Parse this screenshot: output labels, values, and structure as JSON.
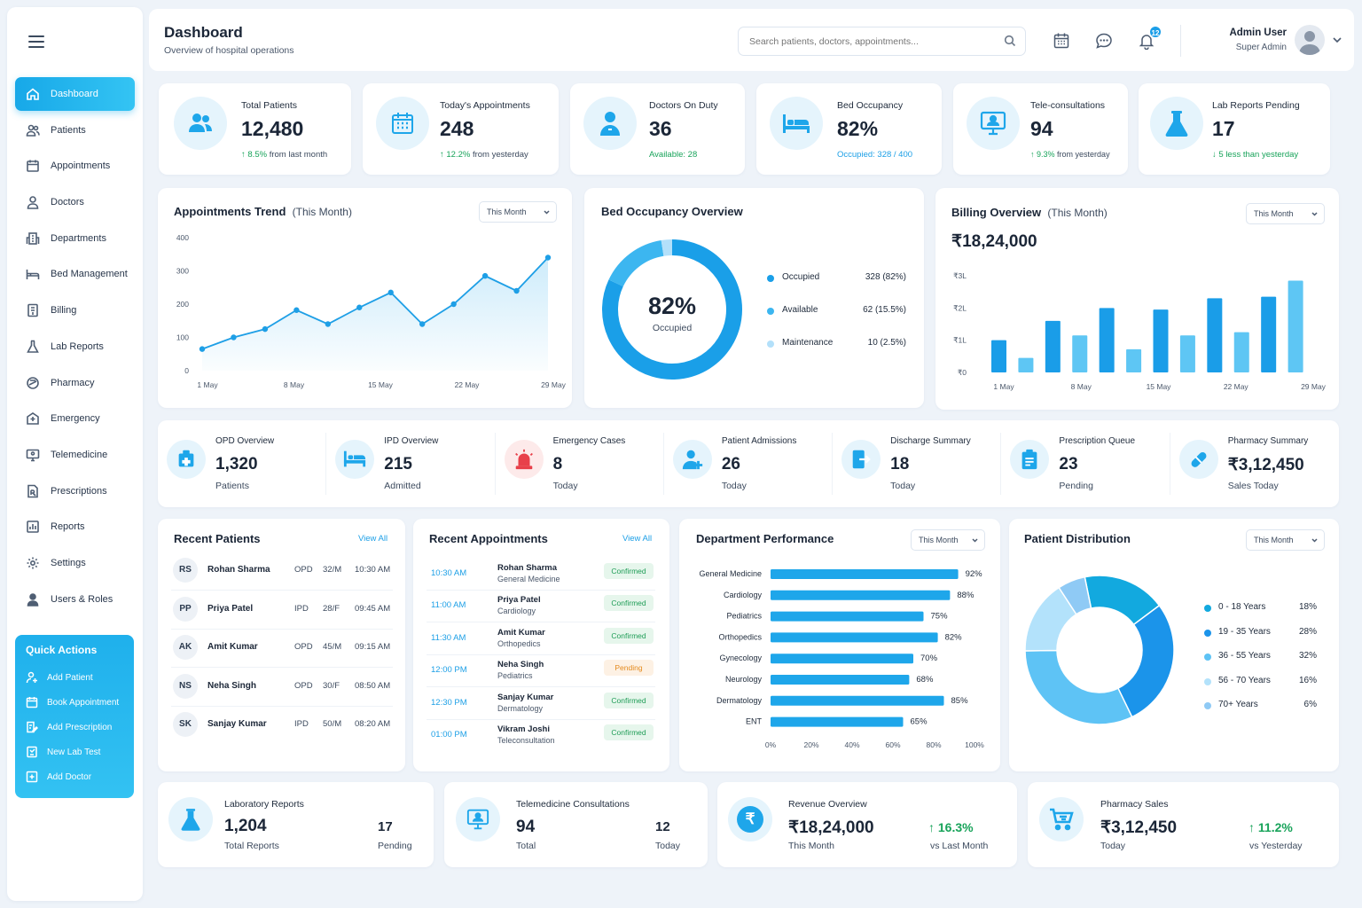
{
  "sidebar": {
    "items": [
      {
        "label": "Dashboard",
        "icon": "home-icon"
      },
      {
        "label": "Patients",
        "icon": "users-icon"
      },
      {
        "label": "Appointments",
        "icon": "calendar-icon"
      },
      {
        "label": "Doctors",
        "icon": "doctor-icon"
      },
      {
        "label": "Departments",
        "icon": "building-icon"
      },
      {
        "label": "Bed Management",
        "icon": "bed-icon"
      },
      {
        "label": "Billing",
        "icon": "billing-icon"
      },
      {
        "label": "Lab Reports",
        "icon": "flask-icon"
      },
      {
        "label": "Pharmacy",
        "icon": "pill-icon"
      },
      {
        "label": "Emergency",
        "icon": "hospital-icon"
      },
      {
        "label": "Telemedicine",
        "icon": "monitor-icon"
      },
      {
        "label": "Prescriptions",
        "icon": "prescription-icon"
      },
      {
        "label": "Reports",
        "icon": "bar-chart-icon"
      },
      {
        "label": "Settings",
        "icon": "gear-icon"
      },
      {
        "label": "Users & Roles",
        "icon": "user-roles-icon"
      }
    ],
    "quick_actions": {
      "title": "Quick Actions",
      "items": [
        "Add Patient",
        "Book Appointment",
        "Add Prescription",
        "New Lab Test",
        "Add Doctor"
      ]
    }
  },
  "header": {
    "title": "Dashboard",
    "subtitle": "Overview of hospital operations",
    "search_placeholder": "Search patients, doctors, appointments...",
    "notification_count": "12",
    "user_name": "Admin User",
    "user_role": "Super Admin"
  },
  "stats": [
    {
      "label": "Total Patients",
      "value": "12,480",
      "delta": "8.5%",
      "delta_text": "from last month"
    },
    {
      "label": "Today's Appointments",
      "value": "248",
      "delta": "12.2%",
      "delta_text": "from yesterday"
    },
    {
      "label": "Doctors On Duty",
      "value": "36",
      "sub": "Available: 28"
    },
    {
      "label": "Bed Occupancy",
      "value": "82%",
      "sub": "Occupied: 328 / 400"
    },
    {
      "label": "Tele-consultations",
      "value": "94",
      "delta": "9.3%",
      "delta_text": "from yesterday"
    },
    {
      "label": "Lab Reports Pending",
      "value": "17",
      "sub": "5 less than yesterday"
    }
  ],
  "appointments_trend": {
    "title": "Appointments Trend",
    "period": "(This Month)",
    "dropdown": "This Month"
  },
  "bed_occupancy": {
    "title": "Bed Occupancy Overview",
    "center_value": "82%",
    "center_label": "Occupied",
    "legend": [
      {
        "label": "Occupied",
        "value": "328 (82%)",
        "color": "#1a9fe8"
      },
      {
        "label": "Available",
        "value": "62 (15.5%)",
        "color": "#3cb6f0"
      },
      {
        "label": "Maintenance",
        "value": "10 (2.5%)",
        "color": "#b3e0fa"
      }
    ]
  },
  "billing": {
    "title": "Billing Overview",
    "period": "(This Month)",
    "dropdown": "This Month",
    "total": "₹18,24,000"
  },
  "overview": [
    {
      "label": "OPD Overview",
      "value": "1,320",
      "sub": "Patients"
    },
    {
      "label": "IPD Overview",
      "value": "215",
      "sub": "Admitted"
    },
    {
      "label": "Emergency Cases",
      "value": "8",
      "sub": "Today"
    },
    {
      "label": "Patient Admissions",
      "value": "26",
      "sub": "Today"
    },
    {
      "label": "Discharge Summary",
      "value": "18",
      "sub": "Today"
    },
    {
      "label": "Prescription Queue",
      "value": "23",
      "sub": "Pending"
    },
    {
      "label": "Pharmacy Summary",
      "value": "₹3,12,450",
      "sub": "Sales Today"
    }
  ],
  "recent_patients": {
    "title": "Recent Patients",
    "view_all": "View All",
    "rows": [
      {
        "initials": "RS",
        "name": "Rohan Sharma",
        "type": "OPD",
        "age": "32/M",
        "time": "10:30 AM"
      },
      {
        "initials": "PP",
        "name": "Priya Patel",
        "type": "IPD",
        "age": "28/F",
        "time": "09:45 AM"
      },
      {
        "initials": "AK",
        "name": "Amit Kumar",
        "type": "OPD",
        "age": "45/M",
        "time": "09:15 AM"
      },
      {
        "initials": "NS",
        "name": "Neha Singh",
        "type": "OPD",
        "age": "30/F",
        "time": "08:50 AM"
      },
      {
        "initials": "SK",
        "name": "Sanjay Kumar",
        "type": "IPD",
        "age": "50/M",
        "time": "08:20 AM"
      }
    ]
  },
  "recent_appointments": {
    "title": "Recent Appointments",
    "view_all": "View All",
    "rows": [
      {
        "time": "10:30 AM",
        "name": "Rohan Sharma",
        "dept": "General Medicine",
        "status": "Confirmed"
      },
      {
        "time": "11:00 AM",
        "name": "Priya Patel",
        "dept": "Cardiology",
        "status": "Confirmed"
      },
      {
        "time": "11:30 AM",
        "name": "Amit Kumar",
        "dept": "Orthopedics",
        "status": "Confirmed"
      },
      {
        "time": "12:00 PM",
        "name": "Neha Singh",
        "dept": "Pediatrics",
        "status": "Pending"
      },
      {
        "time": "12:30 PM",
        "name": "Sanjay Kumar",
        "dept": "Dermatology",
        "status": "Confirmed"
      },
      {
        "time": "01:00 PM",
        "name": "Vikram Joshi",
        "dept": "Teleconsultation",
        "status": "Confirmed"
      }
    ]
  },
  "department_performance": {
    "title": "Department Performance",
    "dropdown": "This Month"
  },
  "patient_distribution": {
    "title": "Patient Distribution",
    "dropdown": "This Month"
  },
  "bottom": [
    {
      "label": "Laboratory Reports",
      "value": "1,204",
      "sub": "Total Reports",
      "value2": "17",
      "sub2": "Pending"
    },
    {
      "label": "Telemedicine Consultations",
      "value": "94",
      "sub": "Total",
      "value2": "12",
      "sub2": "Today"
    },
    {
      "label": "Revenue Overview",
      "value": "₹18,24,000",
      "sub": "This Month",
      "value2": "16.3%",
      "sub2": "vs Last Month"
    },
    {
      "label": "Pharmacy Sales",
      "value": "₹3,12,450",
      "sub": "Today",
      "value2": "11.2%",
      "sub2": "vs Yesterday"
    }
  ],
  "colors": {
    "accent": "#1ea6ea",
    "success": "#18a35a",
    "warning": "#e48a1e"
  },
  "chart_data": [
    {
      "type": "area",
      "title": "Appointments Trend",
      "x_labels": [
        "1 May",
        "8 May",
        "15 May",
        "22 May",
        "29 May"
      ],
      "y_ticks": [
        "0",
        "100",
        "200",
        "300",
        "400"
      ],
      "ylim": [
        0,
        400
      ],
      "values": [
        65,
        100,
        125,
        182,
        140,
        190,
        235,
        140,
        200,
        285,
        240,
        340
      ]
    },
    {
      "type": "pie",
      "title": "Bed Occupancy Overview",
      "labels": [
        "Occupied",
        "Available",
        "Maintenance"
      ],
      "values": [
        82,
        15.5,
        2.5
      ]
    },
    {
      "type": "bar",
      "title": "Billing Overview",
      "x_labels": [
        "1 May",
        "8 May",
        "15 May",
        "22 May",
        "29 May"
      ],
      "y_ticks": [
        "₹0",
        "₹1L",
        "₹2L",
        "₹3L"
      ],
      "ylim": [
        0,
        3
      ],
      "values": [
        1.0,
        0.45,
        1.6,
        1.15,
        2.0,
        0.72,
        1.95,
        1.15,
        2.3,
        1.25,
        2.35,
        2.85
      ]
    },
    {
      "type": "bar",
      "title": "Department Performance",
      "orientation": "horizontal",
      "categories": [
        "General Medicine",
        "Cardiology",
        "Pediatrics",
        "Orthopedics",
        "Gynecology",
        "Neurology",
        "Dermatology",
        "ENT"
      ],
      "values": [
        92,
        88,
        75,
        82,
        70,
        68,
        85,
        65
      ],
      "value_labels": [
        "92%",
        "88%",
        "75%",
        "82%",
        "70%",
        "68%",
        "85%",
        "65%"
      ],
      "x_ticks": [
        "0%",
        "20%",
        "40%",
        "60%",
        "80%",
        "100%"
      ],
      "xlim": [
        0,
        100
      ]
    },
    {
      "type": "pie",
      "title": "Patient Distribution",
      "labels": [
        "0 - 18 Years",
        "19 - 35 Years",
        "36 - 55 Years",
        "56 - 70 Years",
        "70+ Years"
      ],
      "values": [
        18,
        28,
        32,
        16,
        6
      ],
      "value_labels": [
        "18%",
        "28%",
        "32%",
        "16%",
        "6%"
      ],
      "colors": [
        "#12a9df",
        "#1b94ea",
        "#5ec3f5",
        "#b3e2fb",
        "#8fcaf5"
      ]
    }
  ]
}
